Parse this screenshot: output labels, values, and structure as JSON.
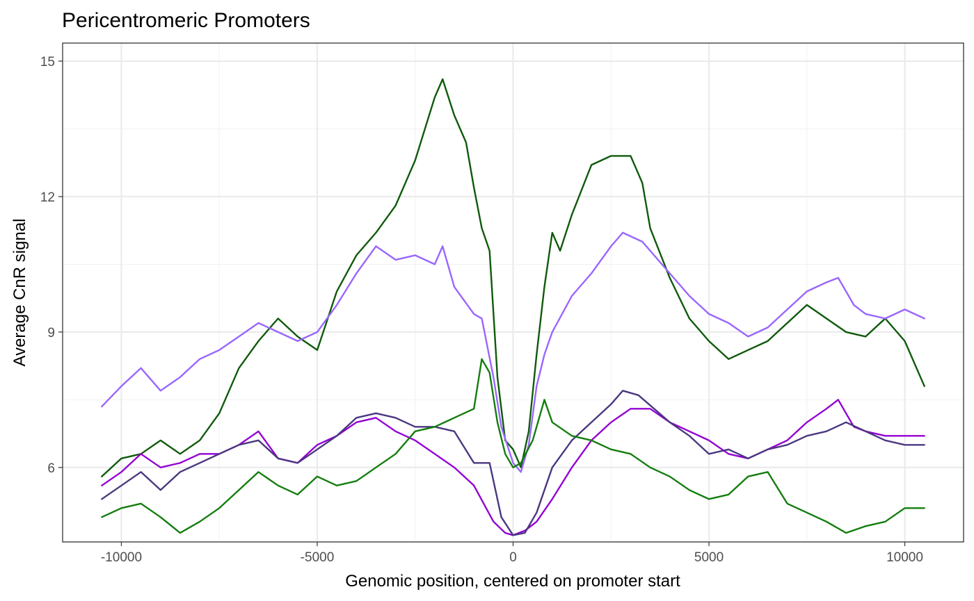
{
  "chart_data": {
    "type": "line",
    "title": "Pericentromeric Promoters",
    "xlabel": "Genomic position, centered on promoter start",
    "ylabel": "Average CnR signal",
    "xlim": [
      -11500,
      11500
    ],
    "ylim": [
      4.35,
      15.4
    ],
    "xticks": [
      -10000,
      -5000,
      0,
      5000,
      10000
    ],
    "xtick_labels": [
      "-10000",
      "-5000",
      "0",
      "5000",
      "10000"
    ],
    "yticks": [
      6,
      9,
      12,
      15
    ],
    "ytick_labels": [
      "6",
      "9",
      "12",
      "15"
    ],
    "grid": true,
    "legend": "none",
    "series": [
      {
        "color": "#0f5a0b",
        "x": [
          -10500,
          -10000,
          -9500,
          -9000,
          -8500,
          -8000,
          -7500,
          -7000,
          -6500,
          -6000,
          -5500,
          -5000,
          -4500,
          -4000,
          -3500,
          -3000,
          -2500,
          -2000,
          -1800,
          -1500,
          -1200,
          -1000,
          -800,
          -600,
          -400,
          -200,
          0,
          200,
          400,
          600,
          800,
          1000,
          1200,
          1500,
          2000,
          2500,
          3000,
          3300,
          3500,
          4000,
          4500,
          5000,
          5500,
          6000,
          6500,
          7000,
          7500,
          8000,
          8500,
          9000,
          9500,
          10000,
          10500
        ],
        "values": [
          5.8,
          6.2,
          6.3,
          6.6,
          6.3,
          6.6,
          7.2,
          8.2,
          8.8,
          9.3,
          8.9,
          8.6,
          9.9,
          10.7,
          11.2,
          11.8,
          12.8,
          14.2,
          14.6,
          13.8,
          13.2,
          12.2,
          11.3,
          10.8,
          8.0,
          6.6,
          6.4,
          6.0,
          6.8,
          8.5,
          10.0,
          11.2,
          10.8,
          11.6,
          12.7,
          12.9,
          12.9,
          12.3,
          11.3,
          10.2,
          9.3,
          8.8,
          8.4,
          8.6,
          8.8,
          9.2,
          9.6,
          9.3,
          9.0,
          8.9,
          9.3,
          8.8,
          7.8
        ]
      },
      {
        "color": "#9966ff",
        "x": [
          -10500,
          -10000,
          -9500,
          -9000,
          -8500,
          -8000,
          -7500,
          -7000,
          -6500,
          -6000,
          -5500,
          -5000,
          -4500,
          -4000,
          -3500,
          -3000,
          -2500,
          -2000,
          -1800,
          -1500,
          -1000,
          -800,
          -500,
          -300,
          0,
          200,
          400,
          600,
          800,
          1000,
          1500,
          2000,
          2500,
          2800,
          3300,
          4000,
          4500,
          5000,
          5500,
          6000,
          6500,
          7000,
          7500,
          8000,
          8300,
          8700,
          9000,
          9500,
          10000,
          10500
        ],
        "values": [
          7.35,
          7.8,
          8.2,
          7.7,
          8.0,
          8.4,
          8.6,
          8.9,
          9.2,
          9.0,
          8.8,
          9.0,
          9.6,
          10.3,
          10.9,
          10.6,
          10.7,
          10.5,
          10.9,
          10.0,
          9.4,
          9.3,
          8.0,
          6.9,
          6.1,
          5.9,
          6.5,
          7.8,
          8.5,
          9.0,
          9.8,
          10.3,
          10.9,
          11.2,
          11.0,
          10.3,
          9.8,
          9.4,
          9.2,
          8.9,
          9.1,
          9.5,
          9.9,
          10.1,
          10.2,
          9.6,
          9.4,
          9.3,
          9.5,
          9.3
        ]
      },
      {
        "color": "#9400d3",
        "x": [
          -10500,
          -10000,
          -9500,
          -9000,
          -8500,
          -8000,
          -7500,
          -7000,
          -6500,
          -6000,
          -5500,
          -5000,
          -4500,
          -4000,
          -3500,
          -3000,
          -2500,
          -2000,
          -1500,
          -1000,
          -500,
          -200,
          0,
          300,
          600,
          1000,
          1500,
          2000,
          2500,
          3000,
          3500,
          4000,
          4500,
          5000,
          5500,
          6000,
          6500,
          7000,
          7500,
          8000,
          8300,
          8700,
          9000,
          9500,
          10000,
          10500
        ],
        "values": [
          5.6,
          5.9,
          6.3,
          6.0,
          6.1,
          6.3,
          6.3,
          6.5,
          6.8,
          6.2,
          6.1,
          6.5,
          6.7,
          7.0,
          7.1,
          6.8,
          6.6,
          6.3,
          6.0,
          5.6,
          4.8,
          4.55,
          4.5,
          4.6,
          4.8,
          5.3,
          6.0,
          6.6,
          7.0,
          7.3,
          7.3,
          7.0,
          6.8,
          6.6,
          6.3,
          6.2,
          6.4,
          6.6,
          7.0,
          7.3,
          7.5,
          6.9,
          6.8,
          6.7,
          6.7,
          6.7
        ]
      },
      {
        "color": "#4b3780",
        "x": [
          -10500,
          -10000,
          -9500,
          -9000,
          -8500,
          -8000,
          -7500,
          -7000,
          -6500,
          -6000,
          -5500,
          -5000,
          -4500,
          -4000,
          -3500,
          -3000,
          -2500,
          -2000,
          -1500,
          -1000,
          -600,
          -300,
          0,
          300,
          600,
          1000,
          1500,
          2000,
          2500,
          2800,
          3200,
          4000,
          4500,
          5000,
          5500,
          6000,
          6500,
          7000,
          7500,
          8000,
          8500,
          9000,
          9500,
          10000,
          10500
        ],
        "values": [
          5.3,
          5.6,
          5.9,
          5.5,
          5.9,
          6.1,
          6.3,
          6.5,
          6.6,
          6.2,
          6.1,
          6.4,
          6.7,
          7.1,
          7.2,
          7.1,
          6.9,
          6.9,
          6.8,
          6.1,
          6.1,
          4.9,
          4.5,
          4.55,
          5.0,
          6.0,
          6.6,
          7.0,
          7.4,
          7.7,
          7.6,
          7.0,
          6.7,
          6.3,
          6.4,
          6.2,
          6.4,
          6.5,
          6.7,
          6.8,
          7.0,
          6.8,
          6.6,
          6.5,
          6.5
        ]
      },
      {
        "color": "#137d0e",
        "x": [
          -10500,
          -10000,
          -9500,
          -9000,
          -8500,
          -8000,
          -7500,
          -7000,
          -6500,
          -6000,
          -5500,
          -5000,
          -4500,
          -4000,
          -3500,
          -3000,
          -2500,
          -2000,
          -1500,
          -1000,
          -800,
          -600,
          -400,
          -200,
          0,
          200,
          500,
          800,
          1000,
          1500,
          2000,
          2500,
          3000,
          3500,
          4000,
          4500,
          5000,
          5500,
          6000,
          6500,
          7000,
          7500,
          8000,
          8500,
          9000,
          9500,
          10000,
          10500
        ],
        "values": [
          4.9,
          5.1,
          5.2,
          4.9,
          4.55,
          4.8,
          5.1,
          5.5,
          5.9,
          5.6,
          5.4,
          5.8,
          5.6,
          5.7,
          6.0,
          6.3,
          6.8,
          6.9,
          7.1,
          7.3,
          8.4,
          8.1,
          7.0,
          6.3,
          6.0,
          6.1,
          6.6,
          7.5,
          7.0,
          6.7,
          6.6,
          6.4,
          6.3,
          6.0,
          5.8,
          5.5,
          5.3,
          5.4,
          5.8,
          5.9,
          5.2,
          5.0,
          4.8,
          4.55,
          4.7,
          4.8,
          5.1,
          5.1
        ]
      }
    ]
  }
}
